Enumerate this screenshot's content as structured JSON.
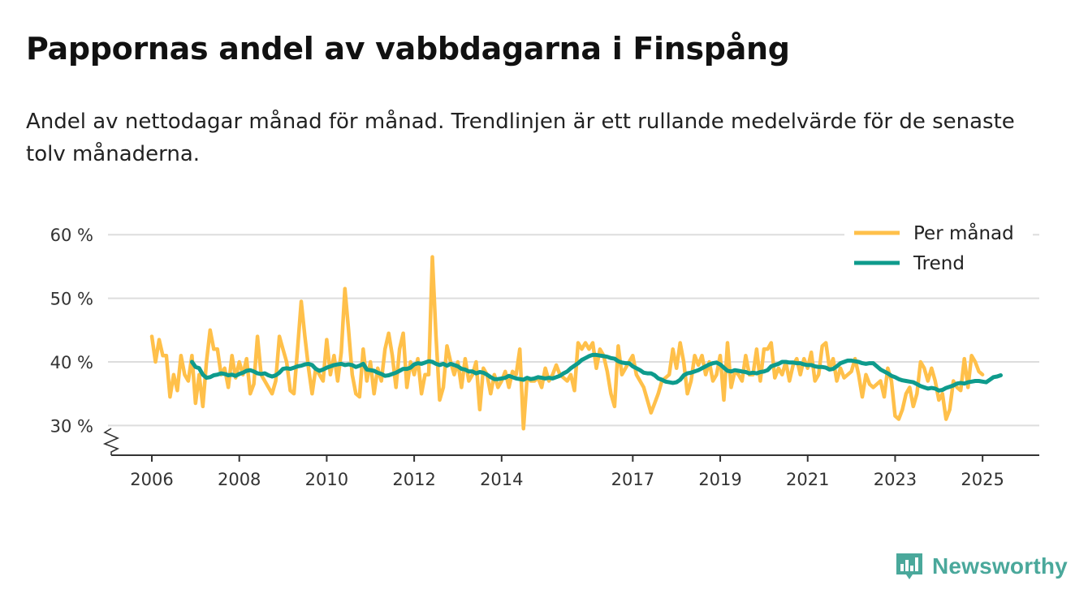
{
  "header": {
    "title": "Pappornas andel av vabbdagarna i Finspång",
    "subtitle": "Andel av nettodagar månad för månad. Trendlinjen är ett rullande medelvärde för de senaste tolv månaderna."
  },
  "brand": {
    "name": "Newsworthy",
    "color": "#4aa89b"
  },
  "colors": {
    "monthly": "#ffc04a",
    "trend": "#0e9b8c",
    "grid": "#dddddd",
    "axis": "#333333"
  },
  "chart_data": {
    "type": "line",
    "title": "Pappornas andel av vabbdagarna i Finspång",
    "ylabel": "Andel av nettodagar",
    "xlabel": "",
    "x_range": [
      2006,
      2025.6
    ],
    "ylim": [
      30,
      60
    ],
    "y_axis_break": true,
    "y_ticks": [
      {
        "value": 30,
        "label": "30 %"
      },
      {
        "value": 40,
        "label": "40 %"
      },
      {
        "value": 50,
        "label": "50 %"
      },
      {
        "value": 60,
        "label": "60 %"
      }
    ],
    "x_ticks": [
      {
        "value": 2006,
        "label": "2006"
      },
      {
        "value": 2008,
        "label": "2008"
      },
      {
        "value": 2010,
        "label": "2010"
      },
      {
        "value": 2012,
        "label": "2012"
      },
      {
        "value": 2014,
        "label": "2014"
      },
      {
        "value": 2017,
        "label": "2017"
      },
      {
        "value": 2019,
        "label": "2019"
      },
      {
        "value": 2021,
        "label": "2021"
      },
      {
        "value": 2023,
        "label": "2023"
      },
      {
        "value": 2025,
        "label": "2025"
      }
    ],
    "grid": true,
    "legend_position": "top-right",
    "legend": [
      "Per månad",
      "Trend"
    ],
    "series": [
      {
        "name": "Per månad",
        "start": 2006.0,
        "step": 0.08333,
        "values": [
          44,
          40,
          43.5,
          41,
          41,
          34.5,
          38,
          35.5,
          41,
          38,
          37,
          41,
          33.5,
          38,
          33,
          40,
          45,
          42,
          42,
          38,
          39,
          36,
          41,
          37.5,
          40,
          38,
          40.5,
          35,
          36.5,
          44,
          38,
          37,
          36,
          35,
          37,
          44,
          42,
          40,
          35.5,
          35,
          42,
          49.5,
          44,
          39,
          35,
          39,
          38,
          37,
          43.5,
          38,
          41,
          37,
          41.5,
          51.5,
          45,
          38,
          35,
          34.5,
          42,
          37,
          40,
          35,
          39,
          37,
          42,
          44.5,
          41,
          36,
          42,
          44.5,
          36,
          40,
          38,
          40.5,
          35,
          38,
          38,
          56.5,
          44,
          34,
          36,
          42.5,
          40,
          38,
          40,
          36,
          40.5,
          37,
          38,
          40,
          32.5,
          39,
          38,
          35,
          38,
          36,
          37,
          38.5,
          36,
          38.5,
          38,
          42,
          29.5,
          37.5,
          37,
          37,
          37.5,
          36,
          39,
          37,
          38,
          39.5,
          38,
          37.5,
          37,
          38,
          35.5,
          43,
          42,
          43,
          42,
          43,
          39,
          42,
          41,
          38.5,
          35,
          33,
          42.5,
          38,
          39,
          40,
          41,
          38,
          37,
          36,
          34,
          32,
          33.5,
          35,
          37,
          37.5,
          38,
          42,
          39,
          43,
          40,
          35,
          37,
          41,
          39.5,
          41,
          38,
          40,
          37,
          38,
          41,
          34,
          43,
          36,
          38.5,
          38,
          37,
          41,
          38,
          38,
          42,
          37,
          42,
          42,
          43,
          37.5,
          39,
          38,
          40,
          37,
          39.5,
          40.5,
          38,
          40.5,
          39,
          41.5,
          37,
          38,
          42.5,
          43,
          39,
          40.5,
          37,
          39,
          37.5,
          38,
          38.5,
          40.5,
          38,
          34.5,
          38,
          36.5,
          36,
          36.5,
          37,
          34.5,
          39,
          37,
          31.5,
          31,
          32.5,
          35,
          36,
          33,
          35,
          40,
          39,
          37,
          39,
          37,
          34,
          35,
          31,
          32.5,
          37,
          36,
          35.5,
          40.5,
          36,
          41,
          40,
          38.5,
          38
        ]
      },
      {
        "name": "Trend",
        "start": 2006.9167,
        "step": 0.08333,
        "values": [
          40,
          39.2,
          39,
          38,
          37.5,
          37.6,
          37.9,
          38,
          38.2,
          38.1,
          37.9,
          38,
          37.8,
          38.1,
          38.3,
          38.6,
          38.7,
          38.5,
          38.2,
          38.1,
          38.2,
          37.9,
          37.7,
          37.9,
          38.3,
          38.9,
          39,
          38.9,
          39.1,
          39.3,
          39.4,
          39.6,
          39.7,
          39.5,
          38.9,
          38.6,
          38.8,
          39.1,
          39.3,
          39.5,
          39.6,
          39.7,
          39.5,
          39.6,
          39.5,
          39.2,
          39.4,
          39.7,
          38.8,
          38.7,
          38.6,
          38.3,
          38.1,
          37.8,
          37.9,
          38.1,
          38.3,
          38.6,
          38.9,
          38.9,
          39.1,
          39.6,
          39.8,
          39.7,
          39.9,
          40.1,
          40,
          39.7,
          39.5,
          39.7,
          39.4,
          39.7,
          39.5,
          39.3,
          38.9,
          38.8,
          38.5,
          38.5,
          38.2,
          38.4,
          38.3,
          38,
          37.6,
          37.3,
          37.3,
          37.4,
          37.5,
          37.8,
          37.6,
          37.4,
          37.3,
          37.2,
          37.5,
          37.3,
          37.4,
          37.6,
          37.5,
          37.4,
          37.5,
          37.4,
          37.6,
          37.8,
          38.2,
          38.5,
          39,
          39.4,
          39.8,
          40.3,
          40.6,
          40.9,
          41.1,
          41.1,
          41,
          40.9,
          40.8,
          40.6,
          40.5,
          40.1,
          39.9,
          39.8,
          39.8,
          39.3,
          39,
          38.7,
          38.3,
          38.2,
          38.2,
          37.9,
          37.4,
          37.2,
          36.9,
          36.8,
          36.7,
          36.8,
          37.2,
          37.9,
          38.2,
          38.3,
          38.5,
          38.7,
          39,
          39.3,
          39.6,
          39.8,
          39.9,
          39.6,
          39.1,
          38.6,
          38.5,
          38.7,
          38.6,
          38.5,
          38.4,
          38.2,
          38.3,
          38.2,
          38.4,
          38.5,
          38.7,
          39.3,
          39.5,
          39.7,
          40,
          40,
          39.9,
          39.9,
          39.8,
          39.8,
          39.6,
          39.5,
          39.5,
          39.3,
          39.2,
          39.2,
          39.1,
          38.8,
          38.9,
          39.3,
          39.8,
          40,
          40.2,
          40.2,
          40.1,
          40,
          39.8,
          39.7,
          39.8,
          39.8,
          39.3,
          38.8,
          38.5,
          38.2,
          37.8,
          37.6,
          37.3,
          37.1,
          37,
          36.9,
          36.8,
          36.5,
          36.2,
          36,
          35.8,
          35.9,
          35.8,
          35.5,
          35.6,
          35.9,
          36.1,
          36.3,
          36.6,
          36.7,
          36.6,
          36.8,
          36.9,
          37,
          37,
          36.9,
          36.8,
          37.2,
          37.6,
          37.7,
          37.9
        ]
      }
    ]
  }
}
